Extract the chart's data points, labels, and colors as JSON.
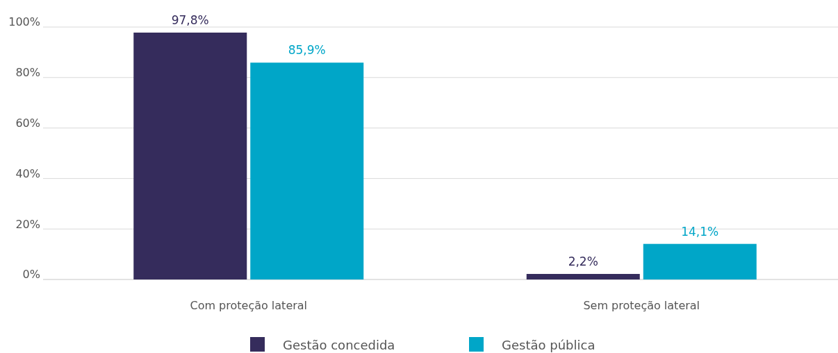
{
  "chart_data": {
    "type": "bar",
    "categories": [
      "Com proteção lateral",
      "Sem proteção lateral"
    ],
    "series": [
      {
        "name": "Gestão concedida",
        "color": "#352c5c",
        "values": [
          97.8,
          2.2
        ],
        "value_labels": [
          "97,8%",
          "2,2%"
        ]
      },
      {
        "name": "Gestão pública",
        "color": "#00a6c8",
        "values": [
          85.9,
          14.1
        ],
        "value_labels": [
          "85,9%",
          "14,1%"
        ]
      }
    ],
    "ylim": [
      0,
      100
    ],
    "yticks": [
      {
        "value": 0,
        "label": "0%"
      },
      {
        "value": 20,
        "label": "20%"
      },
      {
        "value": 40,
        "label": "40%"
      },
      {
        "value": 60,
        "label": "60%"
      },
      {
        "value": 80,
        "label": "80%"
      },
      {
        "value": 100,
        "label": "100%"
      }
    ],
    "grid": "y",
    "legend": "bottom"
  }
}
